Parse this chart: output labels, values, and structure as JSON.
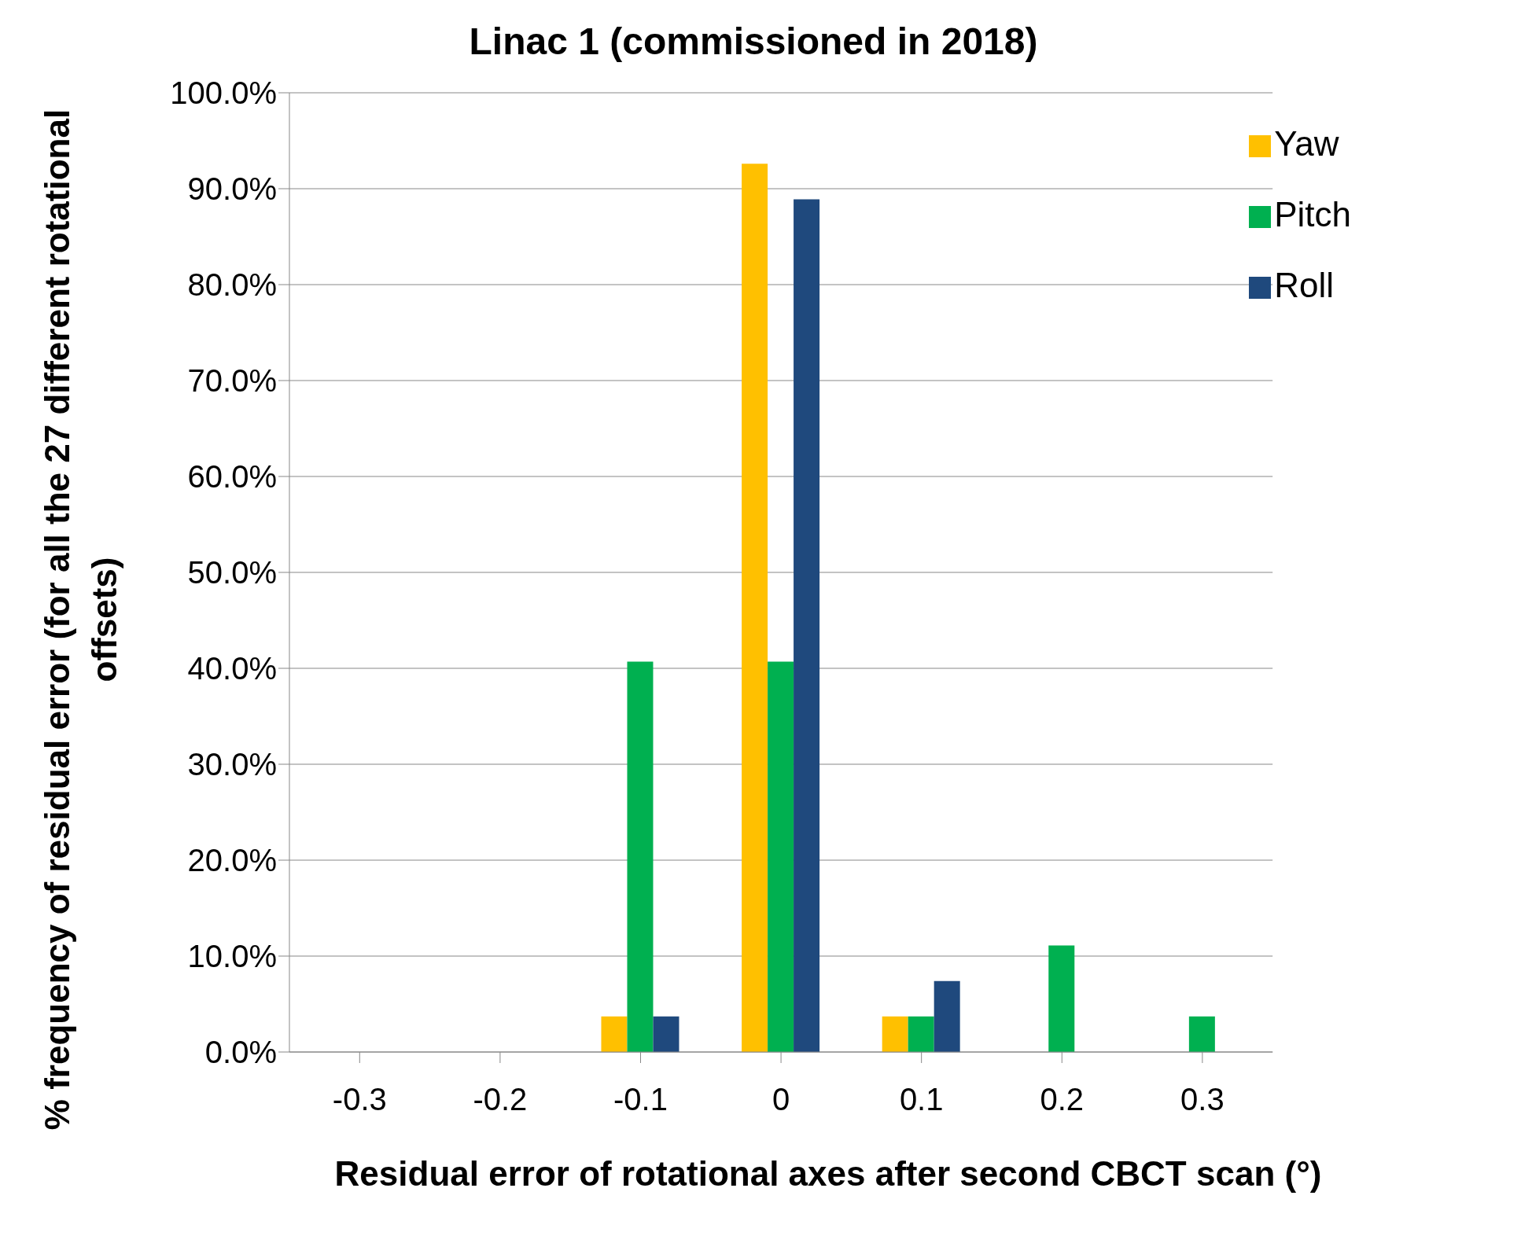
{
  "chart_data": {
    "type": "bar",
    "title": "Linac 1 (commissioned in 2018)",
    "xlabel": "Residual error of rotational axes after second CBCT scan (°)",
    "ylabel": "% frequency of residual error   (for all the 27 different rotational offsets)",
    "categories": [
      "-0.3",
      "-0.2",
      "-0.1",
      "0",
      "0.1",
      "0.2",
      "0.3"
    ],
    "series": [
      {
        "name": "Yaw",
        "color": "#ffc000",
        "values": [
          0,
          0,
          3.7,
          92.6,
          3.7,
          0,
          0
        ]
      },
      {
        "name": "Pitch",
        "color": "#00b050",
        "values": [
          0,
          0,
          40.7,
          40.7,
          3.7,
          11.1,
          3.7
        ]
      },
      {
        "name": "Roll",
        "color": "#1f497d",
        "values": [
          0,
          0,
          3.7,
          88.9,
          7.4,
          0,
          0
        ]
      }
    ],
    "ylim": [
      0,
      100
    ],
    "yticks": [
      {
        "value": 0,
        "label": "0.0%"
      },
      {
        "value": 10,
        "label": "10.0%"
      },
      {
        "value": 20,
        "label": "20.0%"
      },
      {
        "value": 30,
        "label": "30.0%"
      },
      {
        "value": 40,
        "label": "40.0%"
      },
      {
        "value": 50,
        "label": "50.0%"
      },
      {
        "value": 60,
        "label": "60.0%"
      },
      {
        "value": 70,
        "label": "70.0%"
      },
      {
        "value": 80,
        "label": "80.0%"
      },
      {
        "value": 90,
        "label": "90.0%"
      },
      {
        "value": 100,
        "label": "100.0%"
      }
    ],
    "grid": "y",
    "legend": "top right"
  }
}
